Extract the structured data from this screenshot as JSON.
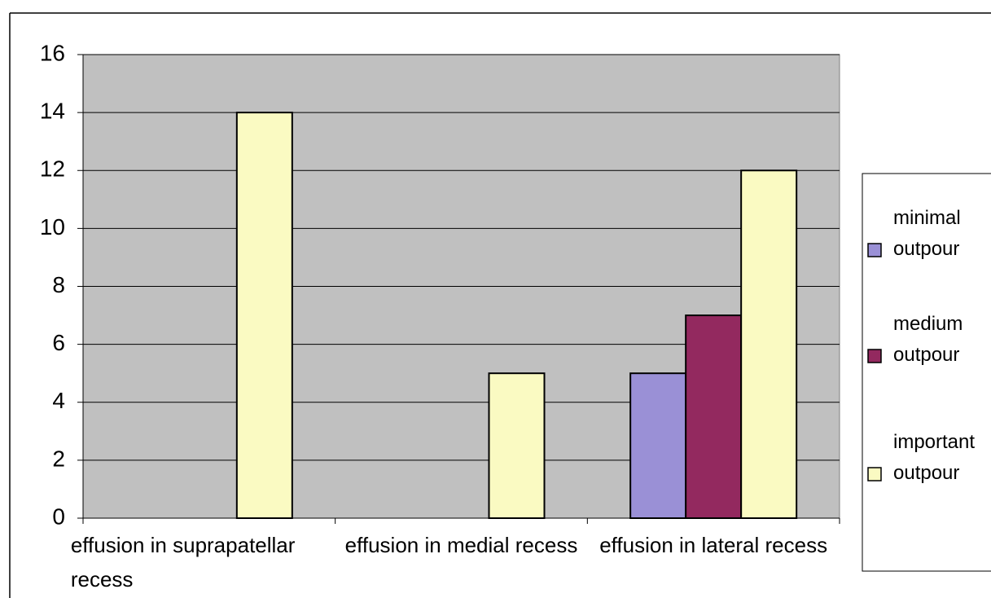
{
  "chart_data": {
    "type": "bar",
    "categories": [
      "effusion in suprapatellar recess",
      "effusion in medial recess",
      "effusion in lateral recess"
    ],
    "series": [
      {
        "name": "minimal outpour",
        "color": "#9a90d6",
        "values": [
          0,
          0,
          5
        ]
      },
      {
        "name": "medium outpour",
        "color": "#93295f",
        "values": [
          0,
          0,
          7
        ]
      },
      {
        "name": "important outpour",
        "color": "#fafac2",
        "values": [
          14,
          5,
          12
        ]
      }
    ],
    "ylim": [
      0,
      16
    ],
    "yticks": [
      0,
      2,
      4,
      6,
      8,
      10,
      12,
      14,
      16
    ],
    "grid": true,
    "legend": "right"
  }
}
